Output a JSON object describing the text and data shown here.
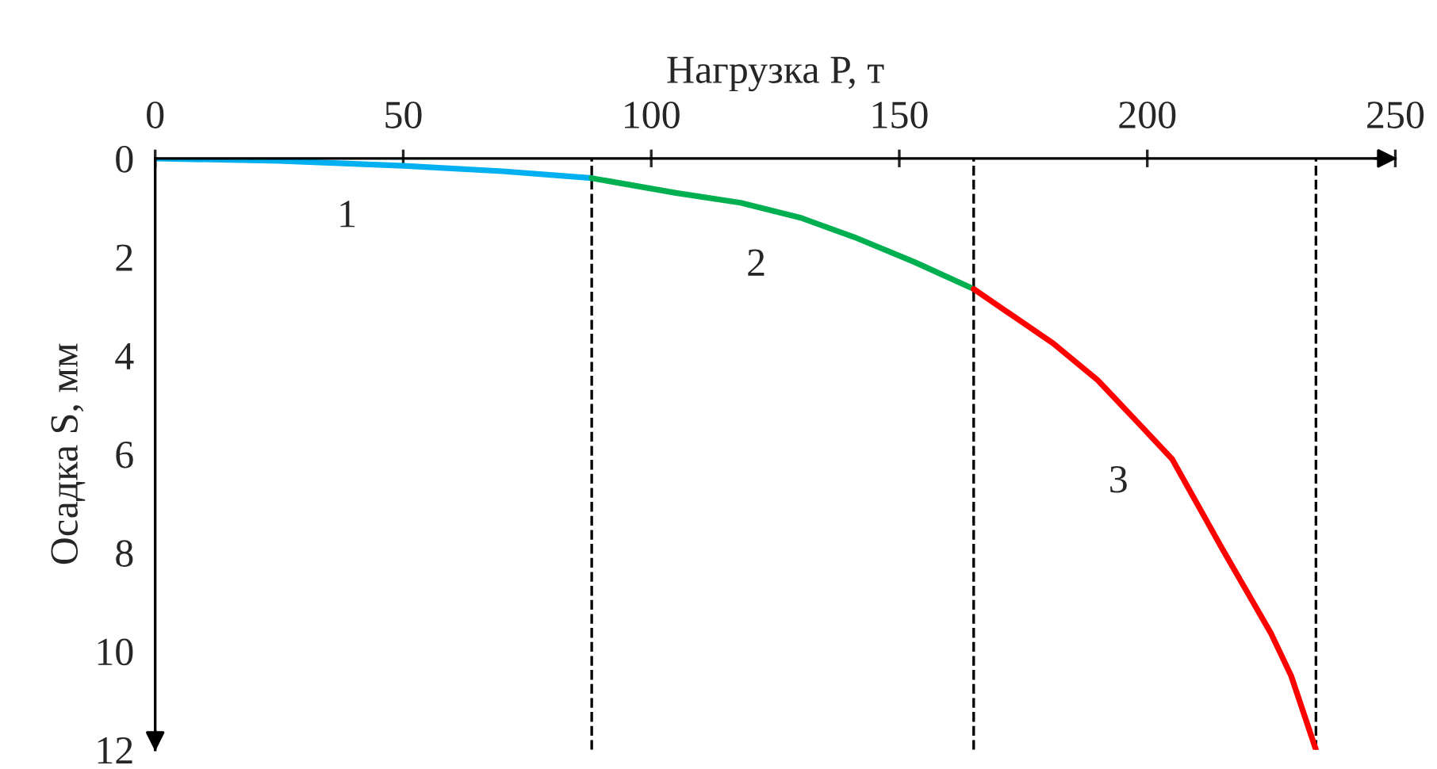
{
  "chart_data": {
    "type": "line",
    "xlabel": "Нагрузка P, т",
    "ylabel": "Осадка S, мм",
    "xlim": [
      0,
      250
    ],
    "xticks": [
      0,
      50,
      100,
      150,
      200,
      250
    ],
    "ylim": [
      12,
      0
    ],
    "yticks": [
      0,
      2,
      4,
      6,
      8,
      10,
      12
    ],
    "grid": false,
    "legend": false,
    "marker": "none",
    "line_style": "solid",
    "series": [
      {
        "name": "1",
        "color": "#00b0f0",
        "x": [
          0,
          25,
          50,
          70,
          88
        ],
        "values": [
          0,
          0.05,
          0.15,
          0.26,
          0.4
        ]
      },
      {
        "name": "2",
        "color": "#00b050",
        "x": [
          88,
          105,
          118,
          130,
          141,
          153,
          165
        ],
        "values": [
          0.4,
          0.7,
          0.9,
          1.2,
          1.6,
          2.1,
          2.65
        ]
      },
      {
        "name": "3",
        "color": "#ff0000",
        "x": [
          165,
          181,
          190,
          198,
          205,
          215,
          225,
          229,
          234
        ],
        "values": [
          2.65,
          3.75,
          4.5,
          5.35,
          6.1,
          7.9,
          9.65,
          10.5,
          12
        ]
      }
    ],
    "ref_lines": [
      {
        "axis": "x",
        "value": 88,
        "color": "#000000",
        "line_style": "dashed"
      },
      {
        "axis": "x",
        "value": 165,
        "color": "#000000",
        "line_style": "dashed"
      },
      {
        "axis": "x",
        "value": 234,
        "color": "#000000",
        "line_style": "dashed"
      }
    ]
  }
}
